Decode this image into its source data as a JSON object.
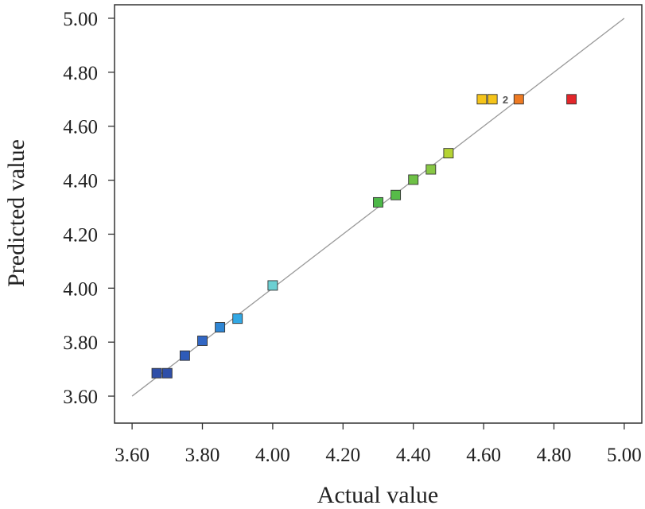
{
  "chart_data": {
    "type": "scatter",
    "title": "",
    "xlabel": "Actual value",
    "ylabel": "Predicted value",
    "xlim": [
      3.55,
      5.05
    ],
    "ylim": [
      3.5,
      5.05
    ],
    "xticks": [
      "3.60",
      "3.80",
      "4.00",
      "4.20",
      "4.40",
      "4.60",
      "4.80",
      "5.00"
    ],
    "yticks": [
      "3.60",
      "3.80",
      "4.00",
      "4.20",
      "4.40",
      "4.60",
      "4.80",
      "5.00"
    ],
    "grid": false,
    "reference_line": {
      "from": [
        3.6,
        3.6
      ],
      "to": [
        5.0,
        5.0
      ],
      "color": "#999999"
    },
    "points": [
      {
        "x": 3.67,
        "y": 3.685,
        "color": "#2f4fa8"
      },
      {
        "x": 3.7,
        "y": 3.685,
        "color": "#2f4fa8"
      },
      {
        "x": 3.75,
        "y": 3.75,
        "color": "#2f5bb8"
      },
      {
        "x": 3.8,
        "y": 3.805,
        "color": "#3267c4"
      },
      {
        "x": 3.85,
        "y": 3.855,
        "color": "#2f86d4"
      },
      {
        "x": 3.9,
        "y": 3.887,
        "color": "#33a8e4"
      },
      {
        "x": 4.0,
        "y": 4.01,
        "color": "#6ccfd2"
      },
      {
        "x": 4.3,
        "y": 4.318,
        "color": "#4db848"
      },
      {
        "x": 4.35,
        "y": 4.345,
        "color": "#56bb48"
      },
      {
        "x": 4.4,
        "y": 4.402,
        "color": "#6ec146"
      },
      {
        "x": 4.45,
        "y": 4.44,
        "color": "#88c744"
      },
      {
        "x": 4.5,
        "y": 4.5,
        "color": "#b5d334"
      },
      {
        "x": 4.595,
        "y": 4.7,
        "color": "#f5c41a"
      },
      {
        "x": 4.625,
        "y": 4.7,
        "color": "#f5c41a"
      },
      {
        "x": 4.7,
        "y": 4.7,
        "color": "#ee7a22"
      },
      {
        "x": 4.85,
        "y": 4.7,
        "color": "#e3262a"
      }
    ],
    "annotations": [
      {
        "text": "2",
        "x": 4.662,
        "y": 4.7
      }
    ]
  }
}
